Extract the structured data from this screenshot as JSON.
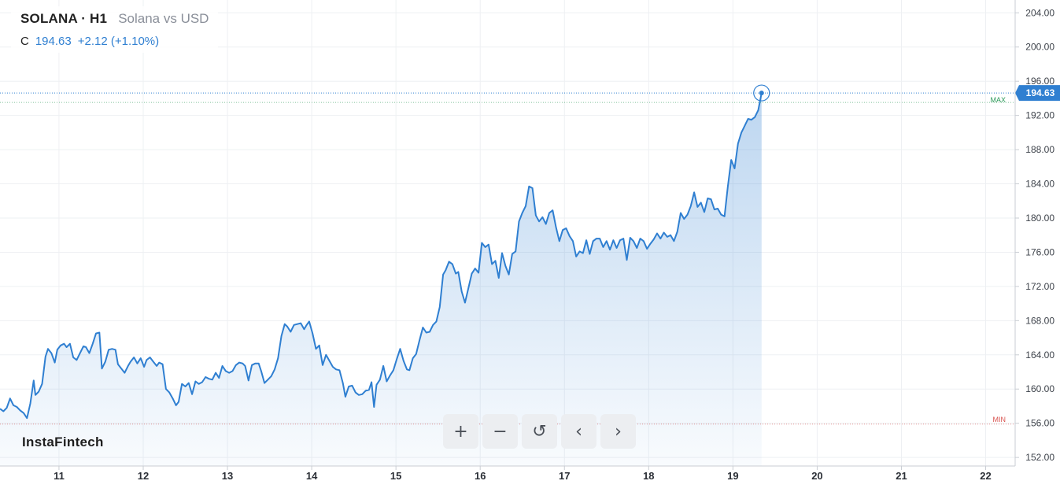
{
  "legend": {
    "symbol": "SOLANA · H1",
    "description": "Solana vs USD",
    "close_label": "C",
    "close_value": "194.63",
    "change": "+2.12 (+1.10%)"
  },
  "brand": "InstaFintech",
  "toolbar": {
    "zoom_in": "+",
    "zoom_out": "−",
    "reset": "↺",
    "back": "‹",
    "forward": "›"
  },
  "markers": {
    "max_label": "MAX",
    "min_label": "MIN",
    "price_tag": "194.63"
  },
  "colors": {
    "line": "#2f7fd1",
    "tag": "#2f7fd1",
    "max": "#2e9a5a",
    "min": "#d9534f"
  },
  "chart_data": {
    "type": "area",
    "title": "SOLANA · H1 Solana vs USD",
    "xlabel": "",
    "ylabel": "",
    "x_ticks": [
      "11",
      "12",
      "13",
      "14",
      "15",
      "16",
      "17",
      "18",
      "19",
      "20",
      "21",
      "22"
    ],
    "y_ticks": [
      "152.00",
      "156.00",
      "160.00",
      "164.00",
      "168.00",
      "172.00",
      "176.00",
      "180.00",
      "184.00",
      "188.00",
      "192.00",
      "196.00",
      "200.00",
      "204.00"
    ],
    "ylim": [
      151,
      205.5
    ],
    "xlim": [
      10.3,
      22.35
    ],
    "y_axis_position": "right",
    "grid": true,
    "max": 194.63,
    "min": 155.9,
    "last": 194.63,
    "x_unit": "day of month",
    "series": [
      {
        "values": [
          [
            10.3,
            157.7
          ],
          [
            10.34,
            157.4
          ],
          [
            10.38,
            157.8
          ],
          [
            10.42,
            158.9
          ],
          [
            10.46,
            158.1
          ],
          [
            10.5,
            157.9
          ],
          [
            10.54,
            157.5
          ],
          [
            10.58,
            157.2
          ],
          [
            10.62,
            156.6
          ],
          [
            10.66,
            158.3
          ],
          [
            10.7,
            161.0
          ],
          [
            10.72,
            159.3
          ],
          [
            10.76,
            159.7
          ],
          [
            10.8,
            160.6
          ],
          [
            10.84,
            163.8
          ],
          [
            10.87,
            164.7
          ],
          [
            10.91,
            164.2
          ],
          [
            10.95,
            163.1
          ],
          [
            10.98,
            164.6
          ],
          [
            11.02,
            165.1
          ],
          [
            11.06,
            165.3
          ],
          [
            11.09,
            164.9
          ],
          [
            11.13,
            165.3
          ],
          [
            11.17,
            163.7
          ],
          [
            11.21,
            163.4
          ],
          [
            11.25,
            164.2
          ],
          [
            11.29,
            165.0
          ],
          [
            11.32,
            164.9
          ],
          [
            11.36,
            164.2
          ],
          [
            11.4,
            165.3
          ],
          [
            11.44,
            166.5
          ],
          [
            11.48,
            166.6
          ],
          [
            11.51,
            162.4
          ],
          [
            11.55,
            163.2
          ],
          [
            11.59,
            164.6
          ],
          [
            11.63,
            164.7
          ],
          [
            11.67,
            164.6
          ],
          [
            11.7,
            162.9
          ],
          [
            11.74,
            162.4
          ],
          [
            11.78,
            161.9
          ],
          [
            11.82,
            162.7
          ],
          [
            11.85,
            163.2
          ],
          [
            11.89,
            163.7
          ],
          [
            11.93,
            163.0
          ],
          [
            11.97,
            163.6
          ],
          [
            12.01,
            162.6
          ],
          [
            12.04,
            163.4
          ],
          [
            12.08,
            163.7
          ],
          [
            12.12,
            163.2
          ],
          [
            12.16,
            162.7
          ],
          [
            12.19,
            163.1
          ],
          [
            12.23,
            162.9
          ],
          [
            12.27,
            160.0
          ],
          [
            12.31,
            159.6
          ],
          [
            12.35,
            158.9
          ],
          [
            12.39,
            158.1
          ],
          [
            12.42,
            158.5
          ],
          [
            12.46,
            160.6
          ],
          [
            12.5,
            160.3
          ],
          [
            12.54,
            160.7
          ],
          [
            12.58,
            159.4
          ],
          [
            12.62,
            160.9
          ],
          [
            12.66,
            160.6
          ],
          [
            12.7,
            160.8
          ],
          [
            12.74,
            161.4
          ],
          [
            12.78,
            161.2
          ],
          [
            12.82,
            161.1
          ],
          [
            12.86,
            161.9
          ],
          [
            12.9,
            161.3
          ],
          [
            12.94,
            162.7
          ],
          [
            12.98,
            162.1
          ],
          [
            13.02,
            161.9
          ],
          [
            13.06,
            162.1
          ],
          [
            13.1,
            162.8
          ],
          [
            13.14,
            163.1
          ],
          [
            13.18,
            163.0
          ],
          [
            13.21,
            162.7
          ],
          [
            13.25,
            161.0
          ],
          [
            13.29,
            162.8
          ],
          [
            13.33,
            163.0
          ],
          [
            13.37,
            163.0
          ],
          [
            13.4,
            162.1
          ],
          [
            13.44,
            160.7
          ],
          [
            13.48,
            161.1
          ],
          [
            13.52,
            161.5
          ],
          [
            13.56,
            162.3
          ],
          [
            13.6,
            163.6
          ],
          [
            13.64,
            166.2
          ],
          [
            13.68,
            167.6
          ],
          [
            13.71,
            167.3
          ],
          [
            13.75,
            166.7
          ],
          [
            13.79,
            167.5
          ],
          [
            13.83,
            167.6
          ],
          [
            13.87,
            167.7
          ],
          [
            13.91,
            167.0
          ],
          [
            13.94,
            167.5
          ],
          [
            13.97,
            167.9
          ],
          [
            14.01,
            166.5
          ],
          [
            14.05,
            164.7
          ],
          [
            14.09,
            165.1
          ],
          [
            14.13,
            162.8
          ],
          [
            14.17,
            164.0
          ],
          [
            14.21,
            163.3
          ],
          [
            14.25,
            162.6
          ],
          [
            14.29,
            162.3
          ],
          [
            14.33,
            162.2
          ],
          [
            14.37,
            160.7
          ],
          [
            14.4,
            159.1
          ],
          [
            14.44,
            160.3
          ],
          [
            14.48,
            160.4
          ],
          [
            14.52,
            159.6
          ],
          [
            14.56,
            159.3
          ],
          [
            14.6,
            159.4
          ],
          [
            14.64,
            159.8
          ],
          [
            14.68,
            159.9
          ],
          [
            14.71,
            160.8
          ],
          [
            14.74,
            157.9
          ],
          [
            14.77,
            160.5
          ],
          [
            14.81,
            161.1
          ],
          [
            14.85,
            162.7
          ],
          [
            14.89,
            160.9
          ],
          [
            14.93,
            161.6
          ],
          [
            14.97,
            162.2
          ],
          [
            15.01,
            163.5
          ],
          [
            15.05,
            164.7
          ],
          [
            15.09,
            163.3
          ],
          [
            15.13,
            162.3
          ],
          [
            15.16,
            162.2
          ],
          [
            15.2,
            163.6
          ],
          [
            15.24,
            164.1
          ],
          [
            15.28,
            165.7
          ],
          [
            15.32,
            167.2
          ],
          [
            15.36,
            166.6
          ],
          [
            15.4,
            166.7
          ],
          [
            15.44,
            167.5
          ],
          [
            15.48,
            167.9
          ],
          [
            15.52,
            169.6
          ],
          [
            15.56,
            173.4
          ],
          [
            15.59,
            173.9
          ],
          [
            15.63,
            174.9
          ],
          [
            15.67,
            174.6
          ],
          [
            15.71,
            173.5
          ],
          [
            15.74,
            173.7
          ],
          [
            15.78,
            171.4
          ],
          [
            15.82,
            170.1
          ],
          [
            15.86,
            171.8
          ],
          [
            15.9,
            173.5
          ],
          [
            15.94,
            174.1
          ],
          [
            15.98,
            173.6
          ],
          [
            16.02,
            177.1
          ],
          [
            16.06,
            176.6
          ],
          [
            16.1,
            176.9
          ],
          [
            16.14,
            174.6
          ],
          [
            16.18,
            175.0
          ],
          [
            16.22,
            173.0
          ],
          [
            16.26,
            175.9
          ],
          [
            16.3,
            174.4
          ],
          [
            16.34,
            173.4
          ],
          [
            16.38,
            175.8
          ],
          [
            16.42,
            176.1
          ],
          [
            16.46,
            179.6
          ],
          [
            16.5,
            180.6
          ],
          [
            16.54,
            181.4
          ],
          [
            16.58,
            183.7
          ],
          [
            16.62,
            183.5
          ],
          [
            16.66,
            180.3
          ],
          [
            16.7,
            179.6
          ],
          [
            16.74,
            180.1
          ],
          [
            16.78,
            179.3
          ],
          [
            16.82,
            180.6
          ],
          [
            16.86,
            180.9
          ],
          [
            16.9,
            178.9
          ],
          [
            16.94,
            177.3
          ],
          [
            16.98,
            178.6
          ],
          [
            17.02,
            178.8
          ],
          [
            17.06,
            177.9
          ],
          [
            17.1,
            177.3
          ],
          [
            17.14,
            175.5
          ],
          [
            17.18,
            176.1
          ],
          [
            17.22,
            175.9
          ],
          [
            17.26,
            177.4
          ],
          [
            17.3,
            175.8
          ],
          [
            17.34,
            177.3
          ],
          [
            17.38,
            177.6
          ],
          [
            17.42,
            177.6
          ],
          [
            17.46,
            176.6
          ],
          [
            17.5,
            177.3
          ],
          [
            17.54,
            176.3
          ],
          [
            17.58,
            177.4
          ],
          [
            17.62,
            176.5
          ],
          [
            17.66,
            177.4
          ],
          [
            17.7,
            177.6
          ],
          [
            17.74,
            175.1
          ],
          [
            17.78,
            177.7
          ],
          [
            17.82,
            177.3
          ],
          [
            17.86,
            176.5
          ],
          [
            17.9,
            177.6
          ],
          [
            17.94,
            177.3
          ],
          [
            17.98,
            176.4
          ],
          [
            18.02,
            177.0
          ],
          [
            18.06,
            177.5
          ],
          [
            18.1,
            178.2
          ],
          [
            18.14,
            177.6
          ],
          [
            18.18,
            178.3
          ],
          [
            18.22,
            177.8
          ],
          [
            18.26,
            178.0
          ],
          [
            18.3,
            177.3
          ],
          [
            18.34,
            178.4
          ],
          [
            18.38,
            180.6
          ],
          [
            18.42,
            179.9
          ],
          [
            18.46,
            180.4
          ],
          [
            18.5,
            181.4
          ],
          [
            18.54,
            183.0
          ],
          [
            18.58,
            181.3
          ],
          [
            18.62,
            181.8
          ],
          [
            18.66,
            180.7
          ],
          [
            18.7,
            182.3
          ],
          [
            18.74,
            182.2
          ],
          [
            18.78,
            181.0
          ],
          [
            18.82,
            181.1
          ],
          [
            18.86,
            180.4
          ],
          [
            18.9,
            180.2
          ],
          [
            18.94,
            183.7
          ],
          [
            18.98,
            186.8
          ],
          [
            19.02,
            185.8
          ],
          [
            19.06,
            188.7
          ],
          [
            19.1,
            190.0
          ],
          [
            19.14,
            190.8
          ],
          [
            19.18,
            191.6
          ],
          [
            19.22,
            191.5
          ],
          [
            19.26,
            191.8
          ],
          [
            19.3,
            192.6
          ],
          [
            19.34,
            194.63
          ]
        ]
      }
    ]
  }
}
